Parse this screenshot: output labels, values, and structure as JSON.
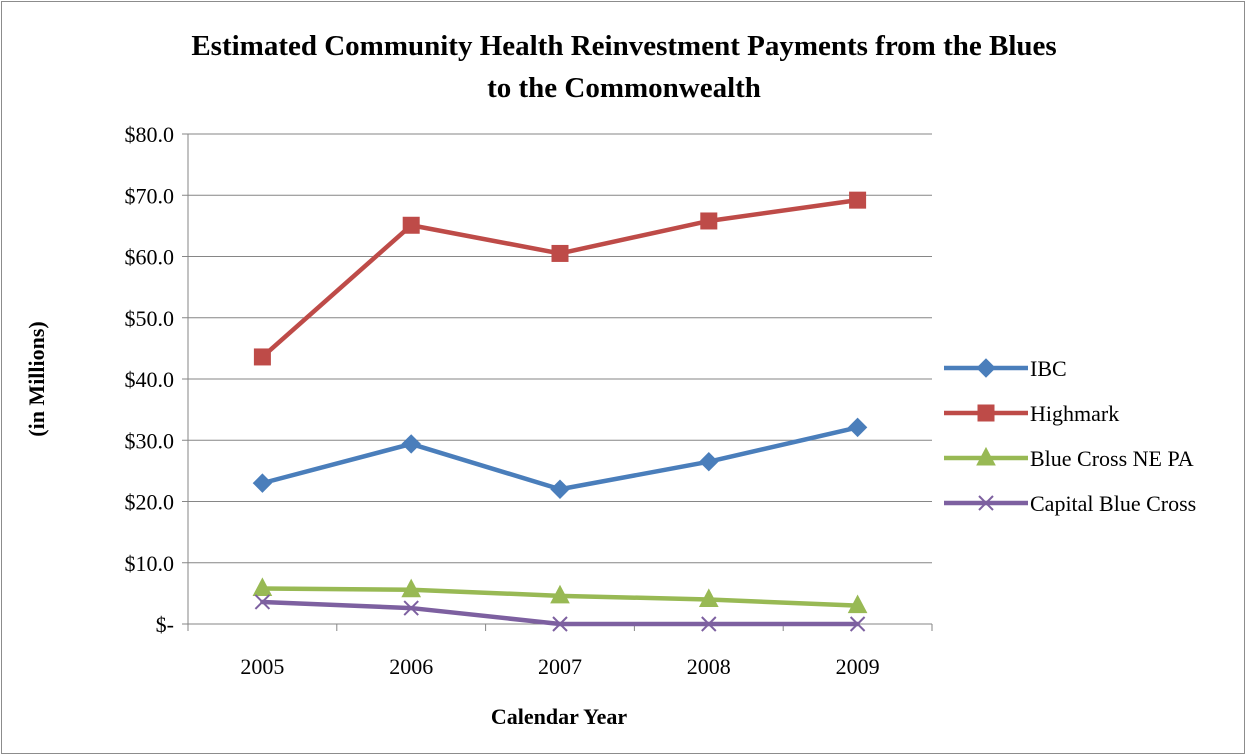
{
  "chart_data": {
    "type": "line",
    "title": "Estimated Community Health Reinvestment Payments from the Blues",
    "title_line2": "to the Commonwealth",
    "xlabel": "Calendar Year",
    "ylabel": "(in Millions)",
    "categories": [
      "2005",
      "2006",
      "2007",
      "2008",
      "2009"
    ],
    "ylim": [
      0,
      80
    ],
    "y_ticks": [
      0,
      10,
      20,
      30,
      40,
      50,
      60,
      70,
      80
    ],
    "y_tick_labels": [
      "$-",
      "$10.0",
      "$20.0",
      "$30.0",
      "$40.0",
      "$50.0",
      "$60.0",
      "$70.0",
      "$80.0"
    ],
    "grid": true,
    "legend_position": "right",
    "series": [
      {
        "name": "IBC",
        "values": [
          23.0,
          29.4,
          22.0,
          26.5,
          32.1
        ],
        "color": "#4a7ebb",
        "marker": "diamond"
      },
      {
        "name": "Highmark",
        "values": [
          43.6,
          65.1,
          60.5,
          65.8,
          69.2
        ],
        "color": "#be4b48",
        "marker": "square"
      },
      {
        "name": "Blue Cross NE PA",
        "values": [
          5.8,
          5.6,
          4.6,
          4.0,
          3.0
        ],
        "color": "#98b954",
        "marker": "triangle"
      },
      {
        "name": "Capital Blue Cross",
        "values": [
          3.6,
          2.6,
          0.0,
          0.0,
          0.0
        ],
        "color": "#7d60a0",
        "marker": "x"
      }
    ]
  }
}
